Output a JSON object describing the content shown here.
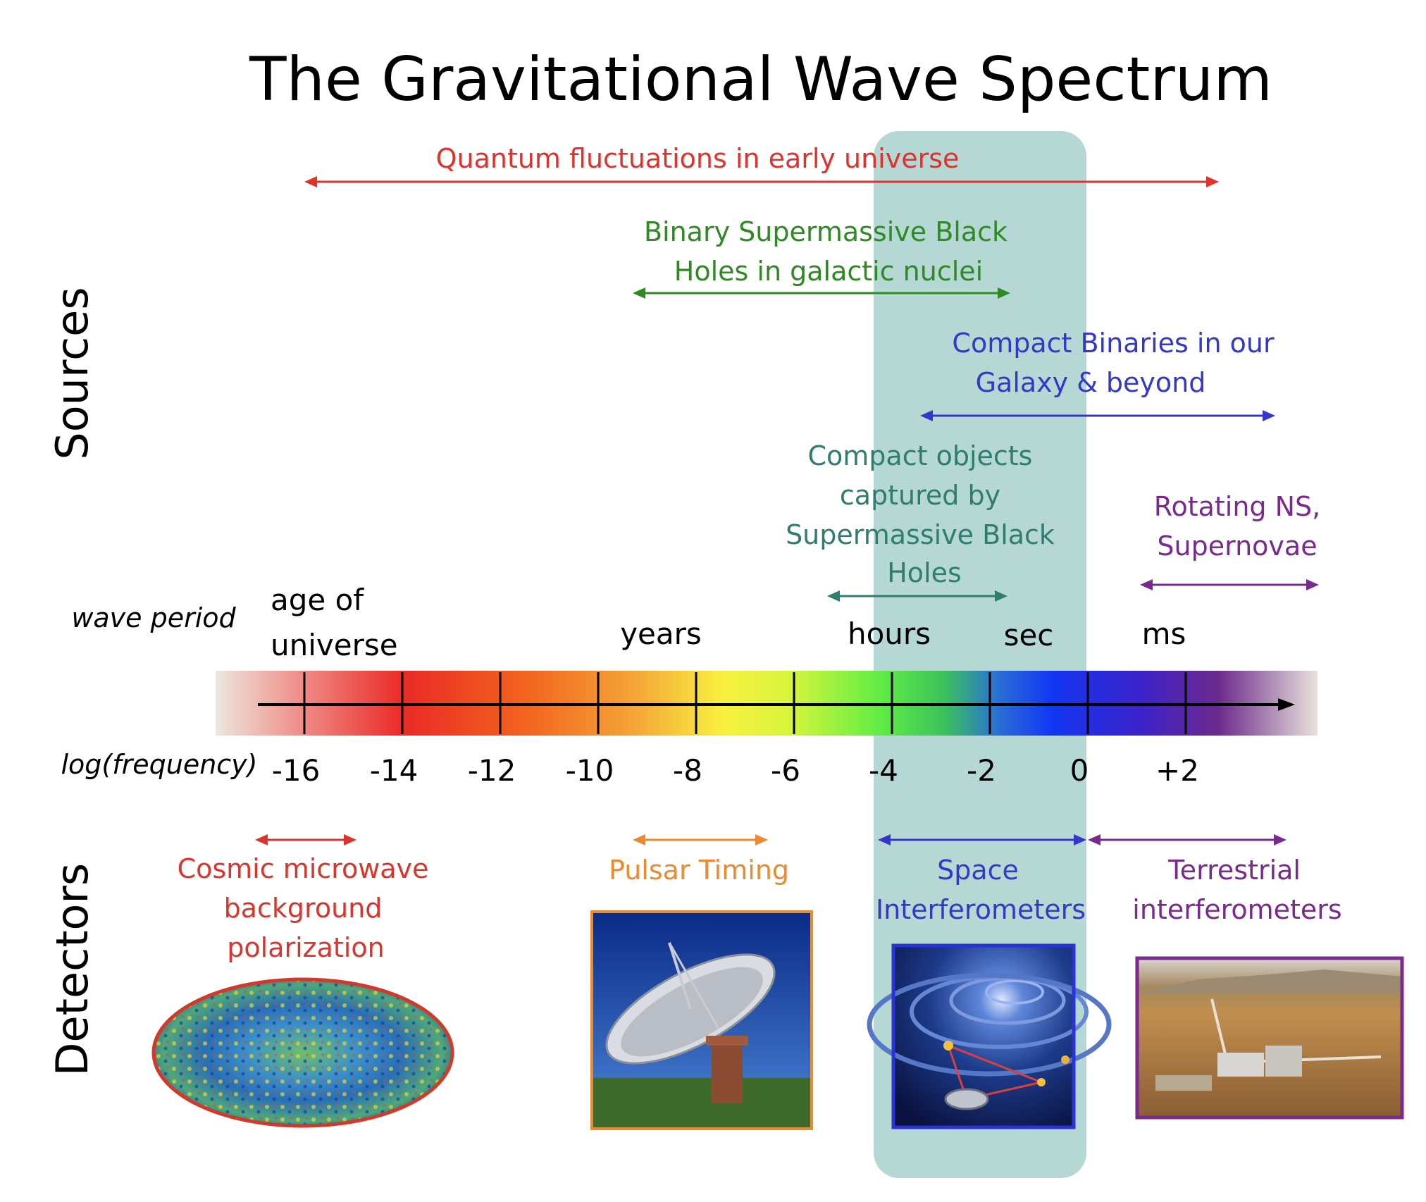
{
  "title": "The Gravitational Wave Spectrum",
  "side_labels": {
    "sources": "Sources",
    "detectors": "Detectors"
  },
  "row_labels": {
    "wave_period": "wave period",
    "log_frequency": "log(frequency)"
  },
  "period_labels": {
    "age_line1": "age of",
    "age_line2": "universe",
    "years": "years",
    "hours": "hours",
    "sec": "sec",
    "ms": "ms"
  },
  "frequency_ticks": [
    "-16",
    "-14",
    "-12",
    "-10",
    "-8",
    "-6",
    "-4",
    "-2",
    "0",
    "+2"
  ],
  "sources": {
    "quantum": {
      "label": "Quantum fluctuations in early universe",
      "color": "#e0312b"
    },
    "smbh": {
      "line1": "Binary Supermassive Black",
      "line2": "Holes in galactic nuclei",
      "color": "#2e8a22"
    },
    "compact_binaries": {
      "line1": "Compact Binaries in our",
      "line2": "Galaxy & beyond",
      "color": "#3437c9"
    },
    "captured": {
      "line1": "Compact objects",
      "line2": "captured by",
      "line3": "Supermassive Black",
      "line4": "Holes",
      "color": "#2f7d6f"
    },
    "rotating": {
      "line1": "Rotating NS,",
      "line2": "Supernovae",
      "color": "#7a2a8e"
    }
  },
  "detectors": {
    "cmb": {
      "line1": "Cosmic microwave",
      "line2": "background",
      "line3": "polarization",
      "color": "#d9352c"
    },
    "pulsar": {
      "label": "Pulsar Timing",
      "color": "#ec8a2f"
    },
    "space": {
      "line1": "Space",
      "line2": "Interferometers",
      "color": "#3437c9"
    },
    "terrestrial": {
      "line1": "Terrestrial",
      "line2": "interferometers",
      "color": "#7a2a8e"
    }
  },
  "colors": {
    "highlight_band": "#b5d8d5",
    "axis": "#000000"
  }
}
